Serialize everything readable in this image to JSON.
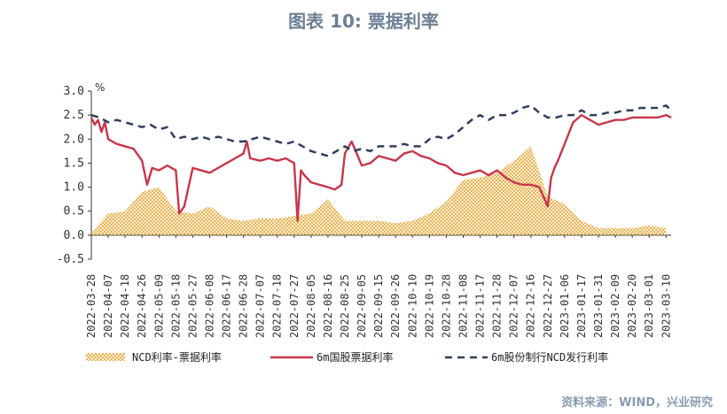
{
  "header": {
    "title": "图表 10: 票据利率"
  },
  "footer": {
    "source": "资料来源：WIND，兴业研究"
  },
  "chart_data": {
    "type": "line",
    "title": "图表 10: 票据利率",
    "ylabel": "%",
    "ylim": [
      -0.5,
      3.0
    ],
    "yticks": [
      "3.0",
      "2.5",
      "2.0",
      "1.5",
      "1.0",
      "0.5",
      "0.0",
      "-0.5"
    ],
    "grid": false,
    "legend_position": "bottom",
    "xtick_labels": [
      "2022-03-28",
      "2022-04-07",
      "2022-04-18",
      "2022-04-26",
      "2022-05-09",
      "2022-05-18",
      "2022-05-27",
      "2022-06-08",
      "2022-06-17",
      "2022-06-28",
      "2022-07-07",
      "2022-07-18",
      "2022-07-27",
      "2022-08-05",
      "2022-08-16",
      "2022-08-25",
      "2022-09-05",
      "2022-09-15",
      "2022-09-26",
      "2022-10-10",
      "2022-10-19",
      "2022-10-28",
      "2022-11-08",
      "2022-11-17",
      "2022-11-28",
      "2022-12-07",
      "2022-12-16",
      "2022-12-27",
      "2023-01-06",
      "2023-01-17",
      "2023-01-31",
      "2023-02-09",
      "2023-02-20",
      "2023-03-01",
      "2023-03-10"
    ],
    "series": [
      {
        "name": "NCD利率-票据利率",
        "type": "area",
        "color": "#e8a838",
        "x": [
          0,
          1,
          2,
          3,
          4,
          5,
          6,
          7,
          8,
          9,
          10,
          11,
          12,
          13,
          14,
          15,
          16,
          17,
          18,
          19,
          20,
          21,
          22,
          23,
          24,
          25,
          26,
          27,
          28,
          29,
          30,
          31,
          32,
          33,
          34
        ],
        "values": [
          0.05,
          0.45,
          0.5,
          0.9,
          1.0,
          0.5,
          0.45,
          0.6,
          0.35,
          0.3,
          0.35,
          0.35,
          0.4,
          0.45,
          0.75,
          0.3,
          0.3,
          0.3,
          0.25,
          0.3,
          0.45,
          0.7,
          1.15,
          1.2,
          1.3,
          1.55,
          1.85,
          0.8,
          0.65,
          0.3,
          0.15,
          0.15,
          0.15,
          0.2,
          0.15
        ]
      },
      {
        "name": "6m国股票据利率",
        "type": "line",
        "color": "#c8364a",
        "x": [
          0,
          0.2,
          0.4,
          0.6,
          0.8,
          1,
          1.5,
          2,
          2.5,
          3,
          3.3,
          3.6,
          4,
          4.5,
          5,
          5.2,
          5.5,
          6,
          6.5,
          7,
          7.5,
          8,
          8.5,
          9,
          9.2,
          9.4,
          10,
          10.5,
          11,
          11.5,
          12,
          12.2,
          12.4,
          12.6,
          13,
          13.5,
          14,
          14.4,
          14.8,
          15,
          15.4,
          16,
          16.5,
          17,
          17.5,
          18,
          18.5,
          19,
          19.5,
          20,
          20.5,
          21,
          21.5,
          22,
          22.5,
          23,
          23.5,
          24,
          24.5,
          25,
          25.5,
          26,
          26.5,
          27,
          27.2,
          27.4,
          27.6,
          28,
          28.5,
          29,
          29.5,
          30,
          30.5,
          31,
          31.5,
          32,
          32.5,
          33,
          33.5,
          34,
          34.3
        ],
        "values": [
          2.45,
          2.3,
          2.4,
          2.15,
          2.35,
          2.0,
          1.9,
          1.85,
          1.8,
          1.55,
          1.05,
          1.4,
          1.35,
          1.45,
          1.35,
          0.45,
          0.6,
          1.4,
          1.35,
          1.3,
          1.4,
          1.5,
          1.6,
          1.7,
          1.95,
          1.6,
          1.55,
          1.6,
          1.55,
          1.6,
          1.5,
          0.3,
          1.35,
          1.25,
          1.1,
          1.05,
          1.0,
          0.95,
          1.05,
          1.7,
          1.95,
          1.45,
          1.5,
          1.65,
          1.6,
          1.55,
          1.7,
          1.75,
          1.65,
          1.6,
          1.5,
          1.45,
          1.3,
          1.25,
          1.3,
          1.35,
          1.25,
          1.35,
          1.2,
          1.1,
          1.05,
          1.05,
          1.0,
          0.6,
          1.2,
          1.4,
          1.55,
          1.9,
          2.35,
          2.5,
          2.4,
          2.3,
          2.35,
          2.4,
          2.4,
          2.45,
          2.45,
          2.45,
          2.45,
          2.5,
          2.45
        ]
      },
      {
        "name": "6m股份制行NCD发行利率",
        "type": "line",
        "color": "#2f3f5c",
        "dashed": true,
        "x": [
          0,
          0.5,
          1,
          1.5,
          2,
          2.5,
          3,
          3.5,
          4,
          4.5,
          5,
          5.5,
          6,
          6.5,
          7,
          7.5,
          8,
          8.5,
          9,
          9.5,
          10,
          10.5,
          11,
          11.5,
          12,
          12.5,
          13,
          13.5,
          14,
          14.5,
          15,
          15.5,
          16,
          16.5,
          17,
          17.5,
          18,
          18.5,
          19,
          19.5,
          20,
          20.5,
          21,
          21.5,
          22,
          22.5,
          23,
          23.5,
          24,
          24.5,
          25,
          25.5,
          26,
          26.5,
          27,
          27.5,
          28,
          28.5,
          29,
          29.5,
          30,
          30.5,
          31,
          31.5,
          32,
          32.5,
          33,
          33.5,
          34,
          34.3
        ],
        "values": [
          2.5,
          2.45,
          2.35,
          2.4,
          2.35,
          2.3,
          2.25,
          2.3,
          2.2,
          2.25,
          2.0,
          2.05,
          2.0,
          2.05,
          2.0,
          2.05,
          2.0,
          1.95,
          1.95,
          2.0,
          2.05,
          2.0,
          1.95,
          1.9,
          1.95,
          1.85,
          1.75,
          1.7,
          1.65,
          1.75,
          1.85,
          1.75,
          1.8,
          1.75,
          1.85,
          1.85,
          1.85,
          1.9,
          1.85,
          1.85,
          2.0,
          2.05,
          2.0,
          2.1,
          2.25,
          2.4,
          2.5,
          2.4,
          2.5,
          2.5,
          2.55,
          2.65,
          2.7,
          2.55,
          2.45,
          2.45,
          2.5,
          2.5,
          2.6,
          2.5,
          2.5,
          2.55,
          2.55,
          2.6,
          2.6,
          2.65,
          2.65,
          2.65,
          2.7,
          2.6
        ]
      }
    ]
  }
}
